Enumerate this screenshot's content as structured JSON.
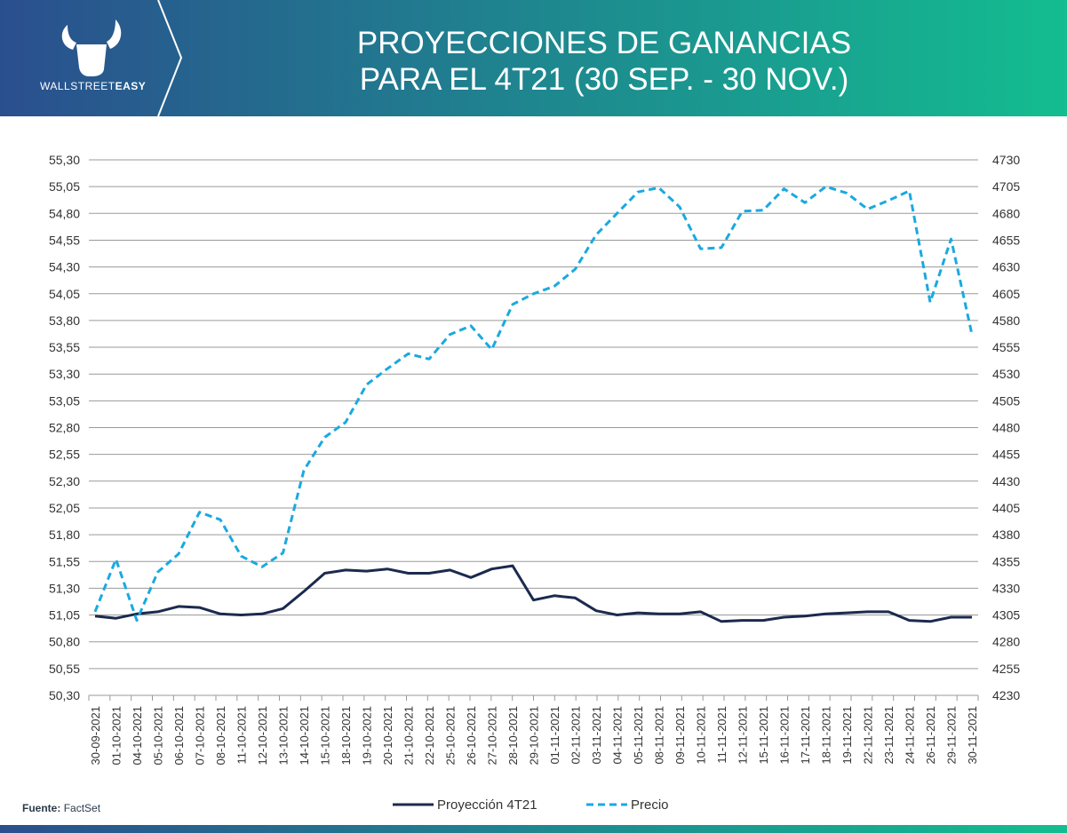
{
  "header": {
    "title_line1": "PROYECCIONES DE GANANCIAS",
    "title_line2": "PARA EL 4T21 (30 SEP. - 30 NOV.)",
    "logo_text_light": "WALLSTREET",
    "logo_text_bold": "EASY",
    "gradient_start": "#2a4f8e",
    "gradient_end": "#13bd90"
  },
  "source": {
    "label": "Fuente:",
    "value": "FactSet"
  },
  "chart_data": {
    "type": "line",
    "title": "PROYECCIONES DE GANANCIAS PARA EL 4T21 (30 SEP. - 30 NOV.)",
    "categories": [
      "30-09-2021",
      "01-10-2021",
      "04-10-2021",
      "05-10-2021",
      "06-10-2021",
      "07-10-2021",
      "08-10-2021",
      "11-10-2021",
      "12-10-2021",
      "13-10-2021",
      "14-10-2021",
      "15-10-2021",
      "18-10-2021",
      "19-10-2021",
      "20-10-2021",
      "21-10-2021",
      "22-10-2021",
      "25-10-2021",
      "26-10-2021",
      "27-10-2021",
      "28-10-2021",
      "29-10-2021",
      "01-11-2021",
      "02-11-2021",
      "03-11-2021",
      "04-11-2021",
      "05-11-2021",
      "08-11-2021",
      "09-11-2021",
      "10-11-2021",
      "11-11-2021",
      "12-11-2021",
      "15-11-2021",
      "16-11-2021",
      "17-11-2021",
      "18-11-2021",
      "19-11-2021",
      "22-11-2021",
      "23-11-2021",
      "24-11-2021",
      "26-11-2021",
      "29-11-2021",
      "30-11-2021"
    ],
    "y_left": {
      "min": 50.3,
      "max": 55.3,
      "ticks": [
        "55,30",
        "55,05",
        "54,80",
        "54,55",
        "54,30",
        "54,05",
        "53,80",
        "53,55",
        "53,30",
        "53,05",
        "52,80",
        "52,55",
        "52,30",
        "52,05",
        "51,80",
        "51,55",
        "51,30",
        "51,05",
        "50,80",
        "50,55",
        "50,30"
      ]
    },
    "y_right": {
      "min": 4230,
      "max": 4730,
      "ticks": [
        "4730",
        "4705",
        "4680",
        "4655",
        "4630",
        "4605",
        "4580",
        "4555",
        "4530",
        "4505",
        "4480",
        "4455",
        "4430",
        "4405",
        "4380",
        "4355",
        "4330",
        "4305",
        "4280",
        "4255",
        "4230"
      ]
    },
    "series": [
      {
        "name": "Proyección 4T21",
        "axis": "left",
        "style": "solid",
        "color": "#1b2a4e",
        "values": [
          51.04,
          51.02,
          51.06,
          51.08,
          51.13,
          51.12,
          51.06,
          51.05,
          51.06,
          51.11,
          51.27,
          51.44,
          51.47,
          51.46,
          51.48,
          51.44,
          51.44,
          51.47,
          51.4,
          51.48,
          51.51,
          51.19,
          51.23,
          51.21,
          51.09,
          51.05,
          51.07,
          51.06,
          51.06,
          51.08,
          50.99,
          51.0,
          51.0,
          51.03,
          51.04,
          51.06,
          51.07,
          51.08,
          51.08,
          51.0,
          50.99,
          51.03,
          51.03
        ]
      },
      {
        "name": "Precio",
        "axis": "right",
        "style": "dashed",
        "color": "#1aa9e0",
        "values": [
          4308,
          4357,
          4300,
          4345,
          4362,
          4401,
          4394,
          4360,
          4350,
          4363,
          4440,
          4471,
          4485,
          4520,
          4535,
          4549,
          4544,
          4567,
          4575,
          4553,
          4595,
          4605,
          4612,
          4628,
          4660,
          4680,
          4700,
          4704,
          4686,
          4647,
          4648,
          4682,
          4683,
          4703,
          4690,
          4705,
          4699,
          4684,
          4692,
          4701,
          4597,
          4656,
          4567
        ]
      }
    ],
    "legend": {
      "position": "bottom-center"
    },
    "grid": true
  }
}
